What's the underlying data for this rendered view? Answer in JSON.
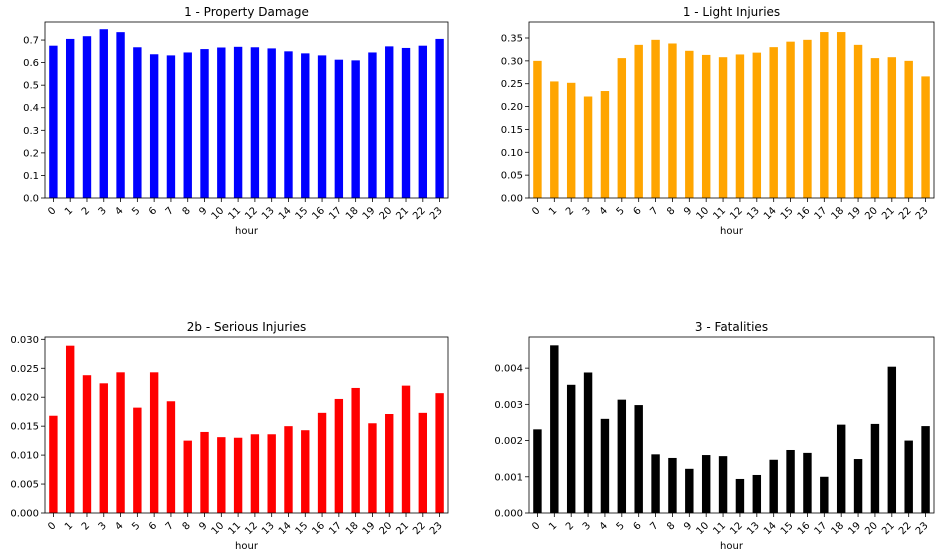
{
  "chart_data": [
    {
      "type": "bar",
      "title": "1 - Property Damage",
      "xlabel": "hour",
      "ylabel": "",
      "color": "#0000ff",
      "categories": [
        "0",
        "1",
        "2",
        "3",
        "4",
        "5",
        "6",
        "7",
        "8",
        "9",
        "10",
        "11",
        "12",
        "13",
        "14",
        "15",
        "16",
        "17",
        "18",
        "19",
        "20",
        "21",
        "22",
        "23"
      ],
      "values": [
        0.675,
        0.705,
        0.717,
        0.748,
        0.735,
        0.668,
        0.637,
        0.632,
        0.645,
        0.66,
        0.667,
        0.67,
        0.668,
        0.663,
        0.65,
        0.641,
        0.632,
        0.613,
        0.61,
        0.645,
        0.672,
        0.665,
        0.675,
        0.705
      ],
      "ylim": [
        0,
        0.78
      ],
      "yticks": [
        0.0,
        0.1,
        0.2,
        0.3,
        0.4,
        0.5,
        0.6,
        0.7
      ],
      "ytick_labels": [
        "0.0",
        "0.1",
        "0.2",
        "0.3",
        "0.4",
        "0.5",
        "0.6",
        "0.7"
      ],
      "grid": false
    },
    {
      "type": "bar",
      "title": "1 - Light Injuries",
      "xlabel": "hour",
      "ylabel": "",
      "color": "#ffa500",
      "categories": [
        "0",
        "1",
        "2",
        "3",
        "4",
        "5",
        "6",
        "7",
        "8",
        "9",
        "10",
        "11",
        "12",
        "13",
        "14",
        "15",
        "16",
        "17",
        "18",
        "19",
        "20",
        "21",
        "22",
        "23"
      ],
      "values": [
        0.3,
        0.255,
        0.252,
        0.222,
        0.234,
        0.306,
        0.335,
        0.346,
        0.338,
        0.322,
        0.313,
        0.308,
        0.314,
        0.318,
        0.33,
        0.342,
        0.346,
        0.363,
        0.363,
        0.335,
        0.306,
        0.308,
        0.3,
        0.266
      ],
      "ylim": [
        0,
        0.385
      ],
      "yticks": [
        0.0,
        0.05,
        0.1,
        0.15,
        0.2,
        0.25,
        0.3,
        0.35
      ],
      "ytick_labels": [
        "0.00",
        "0.05",
        "0.10",
        "0.15",
        "0.20",
        "0.25",
        "0.30",
        "0.35"
      ],
      "grid": false
    },
    {
      "type": "bar",
      "title": "2b - Serious Injuries",
      "xlabel": "hour",
      "ylabel": "",
      "color": "#ff0000",
      "categories": [
        "0",
        "1",
        "2",
        "3",
        "4",
        "5",
        "6",
        "7",
        "8",
        "9",
        "10",
        "11",
        "12",
        "13",
        "14",
        "15",
        "16",
        "17",
        "18",
        "19",
        "20",
        "21",
        "22",
        "23"
      ],
      "values": [
        0.0168,
        0.0289,
        0.0238,
        0.0224,
        0.0243,
        0.0182,
        0.0243,
        0.0193,
        0.0125,
        0.014,
        0.0131,
        0.013,
        0.0136,
        0.0136,
        0.015,
        0.0143,
        0.0173,
        0.0197,
        0.0216,
        0.0155,
        0.0171,
        0.022,
        0.0173,
        0.0207
      ],
      "ylim": [
        0,
        0.0304
      ],
      "yticks": [
        0.0,
        0.005,
        0.01,
        0.015,
        0.02,
        0.025,
        0.03
      ],
      "ytick_labels": [
        "0.000",
        "0.005",
        "0.010",
        "0.015",
        "0.020",
        "0.025",
        "0.030"
      ],
      "grid": false
    },
    {
      "type": "bar",
      "title": "3 - Fatalities",
      "xlabel": "hour",
      "ylabel": "",
      "color": "#000000",
      "categories": [
        "0",
        "1",
        "2",
        "3",
        "4",
        "5",
        "6",
        "7",
        "8",
        "9",
        "10",
        "11",
        "12",
        "13",
        "14",
        "15",
        "16",
        "17",
        "18",
        "19",
        "20",
        "21",
        "22",
        "23"
      ],
      "values": [
        0.00231,
        0.00463,
        0.00354,
        0.00388,
        0.0026,
        0.00313,
        0.00298,
        0.00162,
        0.00152,
        0.00122,
        0.0016,
        0.00157,
        0.00094,
        0.00105,
        0.00147,
        0.00174,
        0.00166,
        0.001,
        0.00244,
        0.00149,
        0.00246,
        0.00404,
        0.002,
        0.0024
      ],
      "ylim": [
        0,
        0.00486
      ],
      "yticks": [
        0.0,
        0.001,
        0.002,
        0.003,
        0.004
      ],
      "ytick_labels": [
        "0.000",
        "0.001",
        "0.002",
        "0.003",
        "0.004"
      ],
      "grid": false
    }
  ]
}
